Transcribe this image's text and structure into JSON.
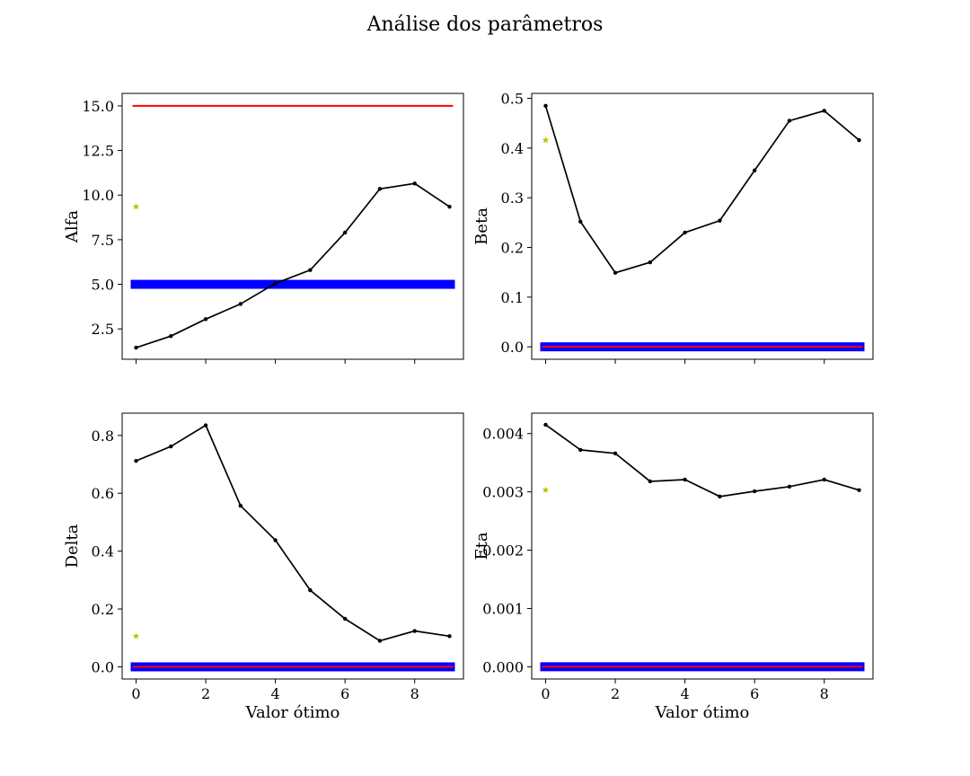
{
  "figure": {
    "suptitle": "Análise dos parâmetros"
  },
  "colors": {
    "series": "#000000",
    "upper_bound": "#ff0000",
    "lower_bound": "#0000ff",
    "marker_star": "#bfbf00"
  },
  "chart_data": [
    {
      "type": "line",
      "ylabel": "Alfa",
      "xlabel": "",
      "x": [
        0,
        1,
        2,
        3,
        4,
        5,
        6,
        7,
        8,
        9
      ],
      "series": [
        {
          "values": [
            1.45,
            2.1,
            3.05,
            3.9,
            5.05,
            5.8,
            7.9,
            10.35,
            10.65,
            9.35
          ]
        }
      ],
      "star": {
        "x": 0,
        "y": 9.35
      },
      "upper_line": {
        "y": 15.0,
        "x": [
          0,
          9
        ]
      },
      "lower_band": {
        "y": 5.0,
        "x": [
          0,
          9
        ]
      },
      "xlim": [
        -0.4,
        9.4
      ],
      "ylim": [
        0.8,
        15.7
      ],
      "xticks": [
        0,
        2,
        4,
        6,
        8
      ],
      "show_xticklabels": false,
      "yticks": [
        2.5,
        5.0,
        7.5,
        10.0,
        12.5,
        15.0
      ],
      "yticklabels": [
        "2.5",
        "5.0",
        "7.5",
        "10.0",
        "12.5",
        "15.0"
      ]
    },
    {
      "type": "line",
      "ylabel": "Beta",
      "xlabel": "",
      "x": [
        0,
        1,
        2,
        3,
        4,
        5,
        6,
        7,
        8,
        9
      ],
      "series": [
        {
          "values": [
            0.485,
            0.252,
            0.149,
            0.17,
            0.23,
            0.254,
            0.355,
            0.455,
            0.475,
            0.416
          ]
        }
      ],
      "star": {
        "x": 0,
        "y": 0.416
      },
      "upper_line": null,
      "lower_band": {
        "y": 0.0,
        "x": [
          0,
          9
        ]
      },
      "inner_line": {
        "y": 0.0,
        "x": [
          0,
          9
        ]
      },
      "xlim": [
        -0.4,
        9.4
      ],
      "ylim": [
        -0.025,
        0.51
      ],
      "xticks": [
        0,
        2,
        4,
        6,
        8
      ],
      "show_xticklabels": false,
      "yticks": [
        0.0,
        0.1,
        0.2,
        0.3,
        0.4,
        0.5
      ],
      "yticklabels": [
        "0.0",
        "0.1",
        "0.2",
        "0.3",
        "0.4",
        "0.5"
      ]
    },
    {
      "type": "line",
      "ylabel": "Delta",
      "xlabel": "Valor ótimo",
      "x": [
        0,
        1,
        2,
        3,
        4,
        5,
        6,
        7,
        8,
        9
      ],
      "series": [
        {
          "values": [
            0.712,
            0.762,
            0.835,
            0.557,
            0.438,
            0.265,
            0.166,
            0.09,
            0.124,
            0.106
          ]
        }
      ],
      "star": {
        "x": 0,
        "y": 0.106
      },
      "upper_line": null,
      "lower_band": {
        "y": 0.0,
        "x": [
          0,
          9
        ]
      },
      "inner_line": {
        "y": 0.0,
        "x": [
          0,
          9
        ]
      },
      "xlim": [
        -0.4,
        9.4
      ],
      "ylim": [
        -0.042,
        0.877
      ],
      "xticks": [
        0,
        2,
        4,
        6,
        8
      ],
      "show_xticklabels": true,
      "xticklabels": [
        "0",
        "2",
        "4",
        "6",
        "8"
      ],
      "yticks": [
        0.0,
        0.2,
        0.4,
        0.6,
        0.8
      ],
      "yticklabels": [
        "0.0",
        "0.2",
        "0.4",
        "0.6",
        "0.8"
      ]
    },
    {
      "type": "line",
      "ylabel": "Eta",
      "xlabel": "Valor ótimo",
      "x": [
        0,
        1,
        2,
        3,
        4,
        5,
        6,
        7,
        8,
        9
      ],
      "series": [
        {
          "values": [
            0.00415,
            0.00372,
            0.00366,
            0.00318,
            0.00321,
            0.00292,
            0.00301,
            0.00309,
            0.00321,
            0.00303
          ]
        }
      ],
      "star": {
        "x": 0,
        "y": 0.00303
      },
      "upper_line": null,
      "lower_band": {
        "y": 0.0,
        "x": [
          0,
          9
        ]
      },
      "inner_line": {
        "y": 0.0,
        "x": [
          0,
          9
        ]
      },
      "xlim": [
        -0.4,
        9.4
      ],
      "ylim": [
        -0.00021,
        0.00435
      ],
      "xticks": [
        0,
        2,
        4,
        6,
        8
      ],
      "show_xticklabels": true,
      "xticklabels": [
        "0",
        "2",
        "4",
        "6",
        "8"
      ],
      "yticks": [
        0.0,
        0.001,
        0.002,
        0.003,
        0.004
      ],
      "yticklabels": [
        "0.000",
        "0.001",
        "0.002",
        "0.003",
        "0.004"
      ]
    }
  ]
}
